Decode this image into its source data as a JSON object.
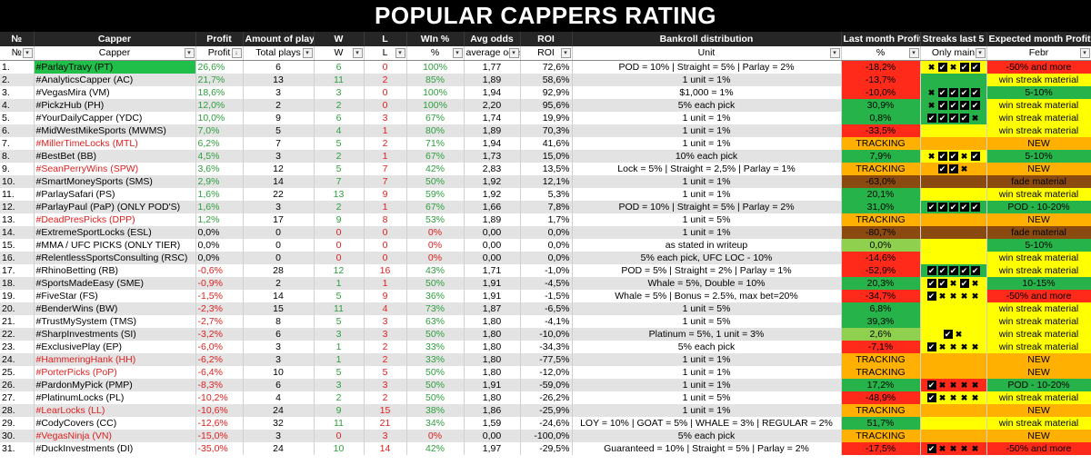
{
  "title": "POPULAR CAPPERS RATING",
  "headers": [
    "№",
    "Capper",
    "Profit",
    "Amount of plays",
    "W",
    "L",
    "WIn %",
    "Avg odds",
    "ROI",
    "Bankroll distribution",
    "Last month Profit",
    "Streaks last 5",
    "Expected month Profit"
  ],
  "subheaders": [
    "№",
    "Capper",
    "Profit",
    "Total plays",
    "W",
    "L",
    "%",
    "average odds",
    "ROI",
    "Unit",
    "%",
    "Only main",
    "Febr"
  ],
  "colors": {
    "header_bg": "#262626",
    "red": "#ff2a1a",
    "green": "#26b34a",
    "yellow": "#ffff00",
    "orange": "#ffb000",
    "brown": "#8b4a10"
  },
  "rows": [
    {
      "n": "1.",
      "capper": "#ParlayTravy (PT)",
      "profit": "26,6%",
      "plays": "6",
      "w": "6",
      "l": "0",
      "win": "100%",
      "odds": "1,77",
      "roi": "72,6%",
      "unit": "POD = 10% | Straight = 5% | Parlay = 2%",
      "lm": "-18,2%",
      "lm_c": "red",
      "streak": "xkxkk",
      "st_c": "yellow",
      "exp": "-50% and more",
      "exp_c": "red",
      "name_red": false,
      "highlight": true
    },
    {
      "n": "2.",
      "capper": "#AnalyticsCapper (AC)",
      "profit": "21,7%",
      "plays": "13",
      "w": "11",
      "l": "2",
      "win": "85%",
      "odds": "1,89",
      "roi": "58,6%",
      "unit": "1 unit = 1%",
      "lm": "-13,7%",
      "lm_c": "red",
      "streak": "",
      "st_c": "green",
      "exp": "win streak material",
      "exp_c": "yellow",
      "name_red": false
    },
    {
      "n": "3.",
      "capper": "#VegasMira (VM)",
      "profit": "18,6%",
      "plays": "3",
      "w": "3",
      "l": "0",
      "win": "100%",
      "odds": "1,94",
      "roi": "92,9%",
      "unit": "$1,000 = 1%",
      "lm": "-10,0%",
      "lm_c": "red",
      "streak": "xkkkk",
      "st_c": "green",
      "exp": "5-10%",
      "exp_c": "green",
      "name_red": false
    },
    {
      "n": "4.",
      "capper": "#PickzHub (PH)",
      "profit": "12,0%",
      "plays": "2",
      "w": "2",
      "l": "0",
      "win": "100%",
      "odds": "2,20",
      "roi": "95,6%",
      "unit": "5% each pick",
      "lm": "30,9%",
      "lm_c": "green",
      "streak": "xkkkk",
      "st_c": "green",
      "exp": "win streak material",
      "exp_c": "yellow",
      "name_red": false
    },
    {
      "n": "5.",
      "capper": "#YourDailyCapper (YDC)",
      "profit": "10,0%",
      "plays": "9",
      "w": "6",
      "l": "3",
      "win": "67%",
      "odds": "1,74",
      "roi": "19,9%",
      "unit": "1 unit = 1%",
      "lm": "0,8%",
      "lm_c": "green",
      "streak": "kkkkx",
      "st_c": "green",
      "exp": "win streak material",
      "exp_c": "yellow",
      "name_red": false
    },
    {
      "n": "6.",
      "capper": "#MidWestMikeSports (MWMS)",
      "profit": "7,0%",
      "plays": "5",
      "w": "4",
      "l": "1",
      "win": "80%",
      "odds": "1,89",
      "roi": "70,3%",
      "unit": "1 unit = 1%",
      "lm": "-33,5%",
      "lm_c": "red",
      "streak": "",
      "st_c": "yellow",
      "exp": "win streak material",
      "exp_c": "yellow",
      "name_red": false
    },
    {
      "n": "7.",
      "capper": "#MillerTimeLocks (MTL)",
      "profit": "6,2%",
      "plays": "7",
      "w": "5",
      "l": "2",
      "win": "71%",
      "odds": "1,94",
      "roi": "41,6%",
      "unit": "1 unit = 1%",
      "lm": "TRACKING",
      "lm_c": "orange",
      "streak": "",
      "st_c": "orange",
      "exp": "NEW",
      "exp_c": "orange",
      "name_red": true
    },
    {
      "n": "8.",
      "capper": "#BestBet (BB)",
      "profit": "4,5%",
      "plays": "3",
      "w": "2",
      "l": "1",
      "win": "67%",
      "odds": "1,73",
      "roi": "15,0%",
      "unit": "10% each pick",
      "lm": "7,9%",
      "lm_c": "green",
      "streak": "xkkxk",
      "st_c": "yellow",
      "exp": "5-10%",
      "exp_c": "green",
      "name_red": false
    },
    {
      "n": "9.",
      "capper": "#SeanPerryWins (SPW)",
      "profit": "3,6%",
      "plays": "12",
      "w": "5",
      "l": "7",
      "win": "42%",
      "odds": "2,83",
      "roi": "13,5%",
      "unit": "Lock = 5% | Straight = 2,5% | Parlay = 1%",
      "lm": "TRACKING",
      "lm_c": "orange",
      "streak": "kkx",
      "st_c": "orange",
      "exp": "NEW",
      "exp_c": "orange",
      "name_red": true
    },
    {
      "n": "10.",
      "capper": "#SmartMoneySports (SMS)",
      "profit": "2,9%",
      "plays": "14",
      "w": "7",
      "l": "7",
      "win": "50%",
      "odds": "1,92",
      "roi": "12,1%",
      "unit": "1 unit = 1%",
      "lm": "-63,0%",
      "lm_c": "brown",
      "streak": "",
      "st_c": "brown",
      "exp": "fade material",
      "exp_c": "brown",
      "name_red": false
    },
    {
      "n": "11.",
      "capper": "#ParlaySafari (PS)",
      "profit": "1,6%",
      "plays": "22",
      "w": "13",
      "l": "9",
      "win": "59%",
      "odds": "1,92",
      "roi": "5,3%",
      "unit": "1 unit = 1%",
      "lm": "20,1%",
      "lm_c": "green",
      "streak": "",
      "st_c": "yellow",
      "exp": "win streak material",
      "exp_c": "yellow",
      "name_red": false
    },
    {
      "n": "12.",
      "capper": "#ParlayPaul (PaP) (ONLY POD'S)",
      "profit": "1,6%",
      "plays": "3",
      "w": "2",
      "l": "1",
      "win": "67%",
      "odds": "1,66",
      "roi": "7,8%",
      "unit": "POD = 10% | Straight = 5% | Parlay = 2%",
      "lm": "31,0%",
      "lm_c": "green",
      "streak": "kkkkk",
      "st_c": "green",
      "exp": "POD - 10-20%",
      "exp_c": "green",
      "name_red": false
    },
    {
      "n": "13.",
      "capper": "#DeadPresPicks (DPP)",
      "profit": "1,2%",
      "plays": "17",
      "w": "9",
      "l": "8",
      "win": "53%",
      "odds": "1,89",
      "roi": "1,7%",
      "unit": "1 unit = 5%",
      "lm": "TRACKING",
      "lm_c": "orange",
      "streak": "",
      "st_c": "orange",
      "exp": "NEW",
      "exp_c": "orange",
      "name_red": true
    },
    {
      "n": "14.",
      "capper": "#ExtremeSportLocks (ESL)",
      "profit": "0,0%",
      "plays": "0",
      "w": "0",
      "l": "0",
      "win": "0%",
      "odds": "0,00",
      "roi": "0,0%",
      "unit": "1 unit = 1%",
      "lm": "-80,7%",
      "lm_c": "brown",
      "streak": "",
      "st_c": "brown",
      "exp": "fade material",
      "exp_c": "brown",
      "name_red": false
    },
    {
      "n": "15.",
      "capper": "#MMA / UFC PICKS (ONLY TIER)",
      "profit": "0,0%",
      "plays": "0",
      "w": "0",
      "l": "0",
      "win": "0%",
      "odds": "0,00",
      "roi": "0,0%",
      "unit": "as stated in writeup",
      "lm": "0,0%",
      "lm_c": "lgreen",
      "streak": "",
      "st_c": "yellow",
      "exp": "5-10%",
      "exp_c": "green",
      "name_red": false
    },
    {
      "n": "16.",
      "capper": "#RelentlessSportsConsulting (RSC)",
      "profit": "0,0%",
      "plays": "0",
      "w": "0",
      "l": "0",
      "win": "0%",
      "odds": "0,00",
      "roi": "0,0%",
      "unit": "5% each pick, UFC LOC - 10%",
      "lm": "-14,6%",
      "lm_c": "red",
      "streak": "",
      "st_c": "yellow",
      "exp": "win streak material",
      "exp_c": "yellow",
      "name_red": false
    },
    {
      "n": "17.",
      "capper": "#RhinoBetting (RB)",
      "profit": "-0,6%",
      "plays": "28",
      "w": "12",
      "l": "16",
      "win": "43%",
      "odds": "1,71",
      "roi": "-1,0%",
      "unit": "POD = 5% | Straight = 2% | Parlay = 1%",
      "lm": "-52,9%",
      "lm_c": "red",
      "streak": "kkkkk",
      "st_c": "green",
      "exp": "win streak material",
      "exp_c": "yellow",
      "name_red": false
    },
    {
      "n": "18.",
      "capper": "#SportsMadeEasy (SME)",
      "profit": "-0,9%",
      "plays": "2",
      "w": "1",
      "l": "1",
      "win": "50%",
      "odds": "1,91",
      "roi": "-4,5%",
      "unit": "Whale = 5%, Double = 10%",
      "lm": "20,3%",
      "lm_c": "green",
      "streak": "kkxkx",
      "st_c": "yellow",
      "exp": "10-15%",
      "exp_c": "green",
      "name_red": false
    },
    {
      "n": "19.",
      "capper": "#FiveStar (FS)",
      "profit": "-1,5%",
      "plays": "14",
      "w": "5",
      "l": "9",
      "win": "36%",
      "odds": "1,91",
      "roi": "-1,5%",
      "unit": "Whale = 5% | Bonus = 2.5%, max bet=20%",
      "lm": "-34,7%",
      "lm_c": "red",
      "streak": "kxxxx",
      "st_c": "yellow",
      "exp": "-50% and more",
      "exp_c": "red",
      "name_red": false
    },
    {
      "n": "20.",
      "capper": "#BenderWins (BW)",
      "profit": "-2,3%",
      "plays": "15",
      "w": "11",
      "l": "4",
      "win": "73%",
      "odds": "1,87",
      "roi": "-6,5%",
      "unit": "1 unit = 5%",
      "lm": "6,8%",
      "lm_c": "green",
      "streak": "",
      "st_c": "yellow",
      "exp": "win streak material",
      "exp_c": "yellow",
      "name_red": false
    },
    {
      "n": "21.",
      "capper": "#TrustMySystem (TMS)",
      "profit": "-2,7%",
      "plays": "8",
      "w": "5",
      "l": "3",
      "win": "63%",
      "odds": "1,80",
      "roi": "-4,1%",
      "unit": "1 unit = 5%",
      "lm": "39,3%",
      "lm_c": "green",
      "streak": "",
      "st_c": "yellow",
      "exp": "win streak material",
      "exp_c": "yellow",
      "name_red": false
    },
    {
      "n": "22.",
      "capper": "#SharpInvestments (SI)",
      "profit": "-3,2%",
      "plays": "6",
      "w": "3",
      "l": "3",
      "win": "50%",
      "odds": "1,80",
      "roi": "-10,0%",
      "unit": "Platinum = 5%, 1 unit = 3%",
      "lm": "2,6%",
      "lm_c": "lgreen",
      "streak": "kx",
      "st_c": "yellow",
      "exp": "win streak material",
      "exp_c": "yellow",
      "name_red": false
    },
    {
      "n": "23.",
      "capper": "#ExclusivePlay (EP)",
      "profit": "-6,0%",
      "plays": "3",
      "w": "1",
      "l": "2",
      "win": "33%",
      "odds": "1,80",
      "roi": "-34,3%",
      "unit": "5% each pick",
      "lm": "-7,1%",
      "lm_c": "red",
      "streak": "kxxxx",
      "st_c": "yellow",
      "exp": "win streak material",
      "exp_c": "yellow",
      "name_red": false
    },
    {
      "n": "24.",
      "capper": "#HammeringHank (HH)",
      "profit": "-6,2%",
      "plays": "3",
      "w": "1",
      "l": "2",
      "win": "33%",
      "odds": "1,80",
      "roi": "-77,5%",
      "unit": "1 unit = 1%",
      "lm": "TRACKING",
      "lm_c": "orange",
      "streak": "",
      "st_c": "orange",
      "exp": "NEW",
      "exp_c": "orange",
      "name_red": true
    },
    {
      "n": "25.",
      "capper": "#PorterPicks (PoP)",
      "profit": "-6,4%",
      "plays": "10",
      "w": "5",
      "l": "5",
      "win": "50%",
      "odds": "1,80",
      "roi": "-12,0%",
      "unit": "1 unit = 1%",
      "lm": "TRACKING",
      "lm_c": "orange",
      "streak": "",
      "st_c": "orange",
      "exp": "NEW",
      "exp_c": "orange",
      "name_red": true
    },
    {
      "n": "26.",
      "capper": "#PardonMyPick (PMP)",
      "profit": "-8,3%",
      "plays": "6",
      "w": "3",
      "l": "3",
      "win": "50%",
      "odds": "1,91",
      "roi": "-59,0%",
      "unit": "1 unit = 1%",
      "lm": "17,2%",
      "lm_c": "green",
      "streak": "kxxxx",
      "st_c": "red",
      "exp": "POD - 10-20%",
      "exp_c": "green",
      "name_red": false
    },
    {
      "n": "27.",
      "capper": "#PlatinumLocks (PL)",
      "profit": "-10,2%",
      "plays": "4",
      "w": "2",
      "l": "2",
      "win": "50%",
      "odds": "1,80",
      "roi": "-26,2%",
      "unit": "1 unit = 5%",
      "lm": "-48,9%",
      "lm_c": "red",
      "streak": "kxxxx",
      "st_c": "yellow",
      "exp": "win streak material",
      "exp_c": "yellow",
      "name_red": false
    },
    {
      "n": "28.",
      "capper": "#LearLocks (LL)",
      "profit": "-10,6%",
      "plays": "24",
      "w": "9",
      "l": "15",
      "win": "38%",
      "odds": "1,86",
      "roi": "-25,9%",
      "unit": "1 unit = 1%",
      "lm": "TRACKING",
      "lm_c": "orange",
      "streak": "",
      "st_c": "orange",
      "exp": "NEW",
      "exp_c": "orange",
      "name_red": true
    },
    {
      "n": "29.",
      "capper": "#CodyCovers (CC)",
      "profit": "-12,6%",
      "plays": "32",
      "w": "11",
      "l": "21",
      "win": "34%",
      "odds": "1,59",
      "roi": "-24,6%",
      "unit": "LOY = 10% | GOAT = 5% | WHALE = 3% | REGULAR = 2%",
      "lm": "51,7%",
      "lm_c": "green",
      "streak": "",
      "st_c": "yellow",
      "exp": "win streak material",
      "exp_c": "yellow",
      "name_red": false
    },
    {
      "n": "30.",
      "capper": "#VegasNinja (VN)",
      "profit": "-15,0%",
      "plays": "3",
      "w": "0",
      "l": "3",
      "win": "0%",
      "odds": "0,00",
      "roi": "-100,0%",
      "unit": "5% each pick",
      "lm": "TRACKING",
      "lm_c": "orange",
      "streak": "",
      "st_c": "orange",
      "exp": "NEW",
      "exp_c": "orange",
      "name_red": true
    },
    {
      "n": "31.",
      "capper": "#DuckInvestments (DI)",
      "profit": "-35,0%",
      "plays": "24",
      "w": "10",
      "l": "14",
      "win": "42%",
      "odds": "1,97",
      "roi": "-29,5%",
      "unit": "Guaranteed = 10% | Straight = 5% | Parlay = 2%",
      "lm": "-17,5%",
      "lm_c": "red",
      "streak": "kxxxx",
      "st_c": "red",
      "exp": "-50% and more",
      "exp_c": "red",
      "name_red": false
    }
  ]
}
